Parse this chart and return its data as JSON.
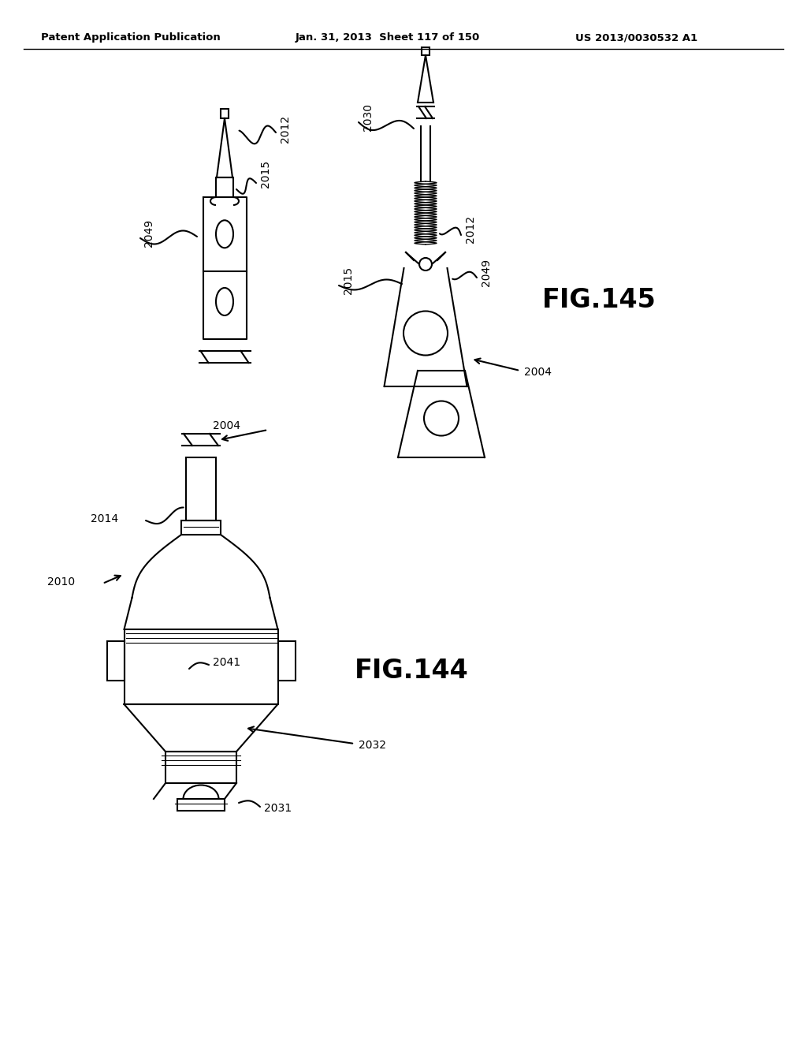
{
  "header_left": "Patent Application Publication",
  "header_mid": "Jan. 31, 2013  Sheet 117 of 150",
  "header_right": "US 2013/0030532 A1",
  "fig144_label": "FIG.144",
  "fig145_label": "FIG.145",
  "bg_color": "#ffffff",
  "line_color": "#000000"
}
